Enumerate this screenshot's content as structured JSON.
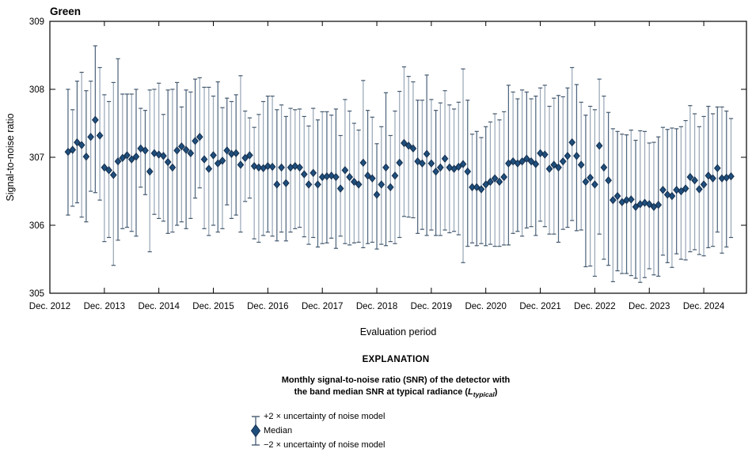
{
  "figure": {
    "title": "Green",
    "x_axis_label": "Evaluation period",
    "y_axis_label": "Signal-to-noise ratio"
  },
  "legend": {
    "heading": "EXPLANATION",
    "title_line1": "Monthly signal-to-noise ratio (SNR) of the detector with",
    "title_line2_pre": "the band median SNR at typical radiance (",
    "title_line2_var": "L",
    "title_line2_sub": "typical",
    "title_line2_post": ")",
    "item_upper": "+2 × uncertainty of noise model",
    "item_median": "Median",
    "item_lower": "−2 × uncertainty of noise model"
  },
  "colors": {
    "marker": "#1f4e7c",
    "marker_edge": "#142f4e",
    "bar": "#9aa8b8",
    "bar_dark": "#51677f",
    "cap": "#44596e",
    "axis": "#000000",
    "text": "#000000",
    "background": "#ffffff"
  },
  "chart_data": {
    "type": "scatter",
    "error_bars": true,
    "title": "Green",
    "xlabel": "Evaluation period",
    "ylabel": "Signal-to-noise ratio",
    "ylim": [
      305,
      309
    ],
    "y_ticks": [
      305,
      306,
      307,
      308,
      309
    ],
    "x_tick_labels": [
      "Dec. 2012",
      "Dec. 2013",
      "Dec. 2014",
      "Dec. 2015",
      "Dec. 2016",
      "Dec. 2017",
      "Dec. 2018",
      "Dec. 2019",
      "Dec. 2020",
      "Dec. 2021",
      "Dec. 2022",
      "Dec. 2023",
      "Dec. 2024"
    ],
    "x_axis_start": "2012-12",
    "x_first_point": "2013-04",
    "start_month_offset": 4,
    "x_axis_total_months": 153.4,
    "grid": false,
    "legend_position": "below",
    "series_name": "Monthly band-median detector SNR at L-typical",
    "median": [
      307.08,
      307.11,
      307.22,
      307.18,
      307.01,
      307.3,
      307.55,
      307.32,
      306.85,
      306.81,
      306.74,
      306.94,
      306.99,
      307.03,
      306.97,
      307.01,
      307.13,
      307.1,
      306.79,
      307.06,
      307.04,
      307.02,
      306.93,
      306.85,
      307.1,
      307.16,
      307.11,
      307.06,
      307.24,
      307.3,
      306.97,
      306.83,
      307.03,
      306.91,
      306.95,
      307.1,
      307.05,
      307.06,
      306.89,
      306.99,
      307.03,
      306.87,
      306.85,
      306.84,
      306.87,
      306.86,
      306.6,
      306.85,
      306.62,
      306.85,
      306.87,
      306.85,
      306.75,
      306.6,
      306.77,
      306.6,
      306.71,
      306.72,
      306.73,
      306.71,
      306.54,
      306.81,
      306.71,
      306.64,
      306.6,
      306.92,
      306.73,
      306.69,
      306.45,
      306.6,
      306.85,
      306.56,
      306.73,
      306.92,
      307.21,
      307.17,
      307.13,
      306.94,
      306.91,
      307.05,
      306.91,
      306.79,
      306.85,
      306.98,
      306.85,
      306.83,
      306.86,
      306.9,
      306.79,
      306.56,
      306.56,
      306.53,
      306.6,
      306.64,
      306.69,
      306.64,
      306.71,
      306.91,
      306.94,
      306.91,
      306.94,
      306.98,
      306.94,
      306.9,
      307.06,
      307.04,
      306.83,
      306.89,
      306.85,
      306.94,
      307.02,
      307.22,
      307.02,
      306.89,
      306.64,
      306.7,
      306.6,
      307.17,
      306.85,
      306.66,
      306.37,
      306.43,
      306.34,
      306.37,
      306.38,
      306.27,
      306.31,
      306.33,
      306.31,
      306.27,
      306.3,
      306.52,
      306.45,
      306.43,
      306.52,
      306.5,
      306.54,
      306.71,
      306.66,
      306.53,
      306.6,
      306.73,
      306.69,
      306.84,
      306.69,
      306.7,
      306.72
    ],
    "upper": [
      308.0,
      307.7,
      308.12,
      308.25,
      307.98,
      308.12,
      308.64,
      308.32,
      307.92,
      307.82,
      308.1,
      308.45,
      307.93,
      307.93,
      307.93,
      308.0,
      307.72,
      307.69,
      307.99,
      308.0,
      308.09,
      307.63,
      307.99,
      308.0,
      308.1,
      307.74,
      307.99,
      307.96,
      308.15,
      308.17,
      308.03,
      308.03,
      307.9,
      308.11,
      307.73,
      307.87,
      307.82,
      307.92,
      308.2,
      307.68,
      307.58,
      307.44,
      307.63,
      307.82,
      307.9,
      307.9,
      307.7,
      307.77,
      307.6,
      307.72,
      307.7,
      307.71,
      307.6,
      307.46,
      307.72,
      307.55,
      307.67,
      307.67,
      307.62,
      307.71,
      307.32,
      307.85,
      307.68,
      307.5,
      307.4,
      308.13,
      307.69,
      307.59,
      307.2,
      307.45,
      307.95,
      307.32,
      307.68,
      307.97,
      308.33,
      308.19,
      308.11,
      307.84,
      307.84,
      308.21,
      307.85,
      307.69,
      307.8,
      307.98,
      307.77,
      307.71,
      307.81,
      308.3,
      307.84,
      307.34,
      307.38,
      307.29,
      307.45,
      307.52,
      307.64,
      307.55,
      307.67,
      308.06,
      307.96,
      307.86,
      307.99,
      307.96,
      307.86,
      307.9,
      308.02,
      308.06,
      307.75,
      307.87,
      307.91,
      307.89,
      308.02,
      308.32,
      308.07,
      307.81,
      307.62,
      307.75,
      307.7,
      308.15,
      307.9,
      307.66,
      307.42,
      307.38,
      307.34,
      307.33,
      307.4,
      307.25,
      307.39,
      307.38,
      307.21,
      307.22,
      307.3,
      307.44,
      307.41,
      307.43,
      307.42,
      307.45,
      307.54,
      307.76,
      307.64,
      307.45,
      307.6,
      307.75,
      307.64,
      307.74,
      307.74,
      307.68,
      307.57
    ],
    "lower": [
      306.15,
      306.28,
      306.33,
      306.12,
      306.05,
      306.5,
      306.48,
      306.37,
      305.76,
      305.82,
      305.41,
      305.78,
      305.95,
      305.97,
      305.91,
      305.84,
      306.56,
      306.45,
      305.61,
      306.16,
      306.1,
      306.06,
      305.88,
      305.9,
      306.0,
      306.05,
      305.95,
      306.1,
      306.4,
      306.55,
      305.95,
      305.85,
      306.0,
      305.9,
      305.95,
      306.3,
      306.1,
      306.15,
      305.9,
      306.35,
      306.4,
      305.8,
      305.75,
      305.85,
      305.9,
      305.84,
      305.77,
      305.9,
      305.77,
      305.9,
      305.95,
      305.97,
      305.83,
      305.72,
      305.82,
      305.68,
      305.73,
      305.74,
      305.81,
      305.66,
      305.84,
      305.73,
      305.71,
      305.74,
      305.75,
      305.67,
      305.73,
      305.75,
      305.65,
      305.72,
      305.7,
      305.76,
      305.73,
      305.82,
      306.13,
      306.12,
      306.11,
      305.88,
      305.94,
      305.85,
      305.93,
      305.85,
      305.85,
      305.93,
      305.89,
      305.91,
      305.86,
      305.45,
      305.69,
      305.74,
      305.7,
      305.73,
      305.7,
      305.72,
      305.69,
      305.69,
      305.71,
      305.71,
      305.88,
      305.91,
      305.84,
      305.96,
      305.98,
      305.85,
      306.06,
      305.98,
      305.87,
      305.87,
      305.75,
      305.94,
      305.97,
      306.07,
      305.92,
      305.93,
      305.39,
      305.4,
      305.25,
      305.87,
      305.5,
      305.41,
      305.17,
      305.33,
      305.29,
      305.29,
      305.26,
      305.22,
      305.16,
      305.23,
      305.36,
      305.27,
      305.25,
      305.56,
      305.45,
      305.38,
      305.58,
      305.5,
      305.49,
      305.61,
      305.64,
      305.57,
      305.55,
      305.67,
      305.69,
      305.9,
      305.59,
      305.68,
      305.82
    ]
  }
}
